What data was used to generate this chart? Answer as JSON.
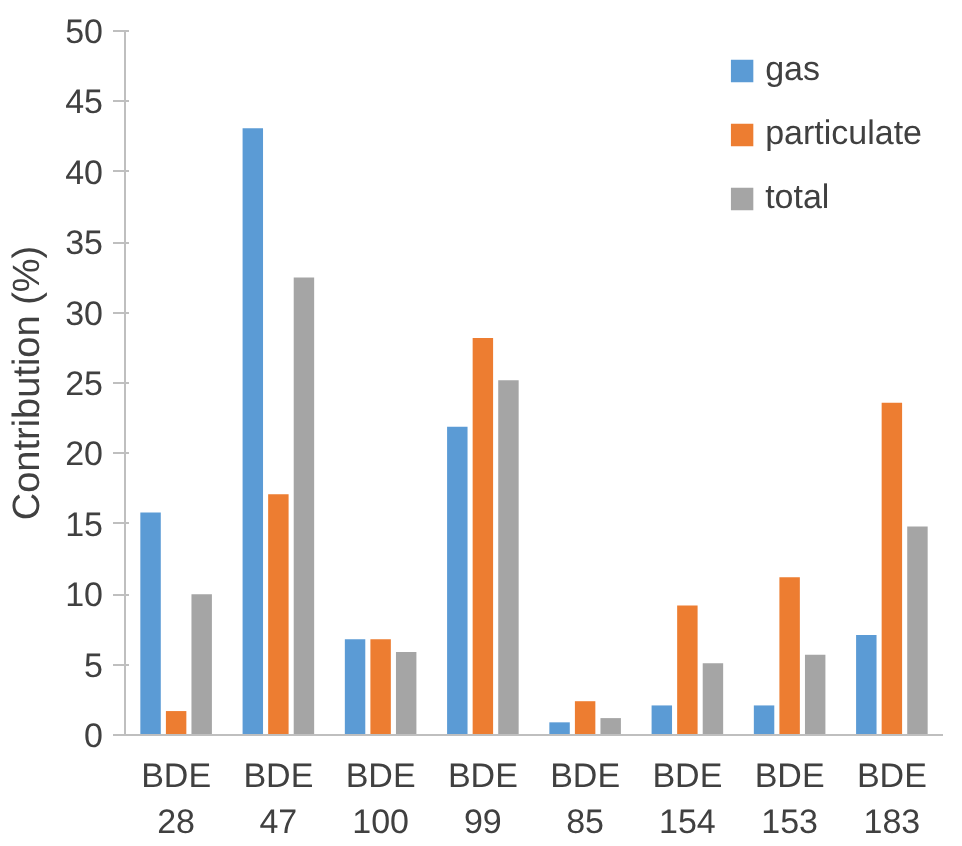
{
  "chart_data": {
    "type": "bar",
    "ylabel": "Contribution (%)",
    "categories": [
      "BDE 28",
      "BDE 47",
      "BDE 100",
      "BDE 99",
      "BDE 85",
      "BDE 154",
      "BDE 153",
      "BDE 183"
    ],
    "series": [
      {
        "name": "gas",
        "color": "#5b9bd5",
        "values": [
          15.8,
          43.1,
          6.8,
          21.9,
          0.9,
          2.1,
          2.1,
          7.1
        ]
      },
      {
        "name": "particulate",
        "color": "#ed7d31",
        "values": [
          1.7,
          17.1,
          6.8,
          28.2,
          2.4,
          9.2,
          11.2,
          23.6
        ]
      },
      {
        "name": "total",
        "color": "#a5a5a5",
        "values": [
          10.0,
          32.5,
          5.9,
          25.2,
          1.2,
          5.1,
          5.7,
          14.8
        ]
      }
    ],
    "ylim": [
      0,
      50
    ],
    "yticks": [
      0,
      5,
      10,
      15,
      20,
      25,
      30,
      35,
      40,
      45,
      50
    ],
    "grid": false,
    "legend": "top right"
  }
}
